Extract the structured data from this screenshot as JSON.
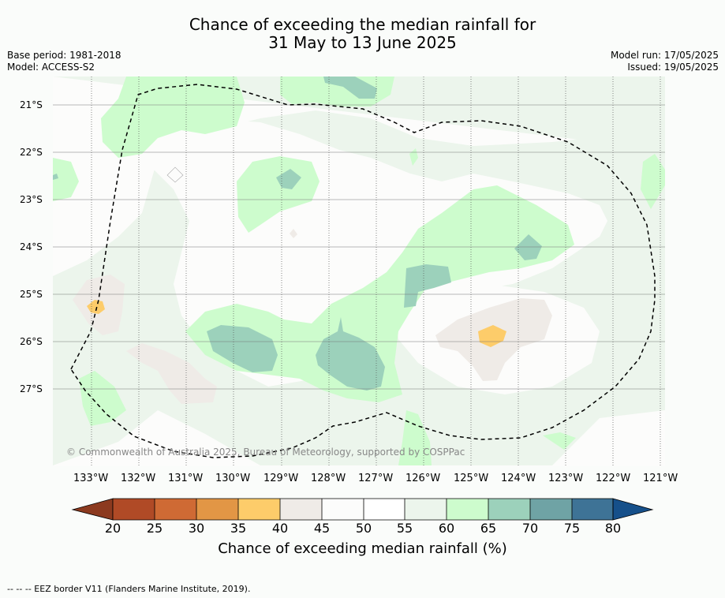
{
  "title": {
    "line1": "Chance of exceeding the median rainfall for",
    "line2": "31 May to 13 June 2025"
  },
  "meta": {
    "base_period": "Base period: 1981-2018",
    "model": "Model: ACCESS-S2",
    "model_run": "Model run: 17/05/2025",
    "issued": "Issued: 19/05/2025"
  },
  "map": {
    "lat_labels": [
      "21°S",
      "22°S",
      "23°S",
      "24°S",
      "25°S",
      "26°S",
      "27°S"
    ],
    "lon_labels": [
      "133°W",
      "132°W",
      "131°W",
      "130°W",
      "129°W",
      "128°W",
      "127°W",
      "126°W",
      "125°W",
      "124°W",
      "123°W",
      "122°W",
      "121°W"
    ],
    "copyright": "© Commonwealth of Australia 2025, Bureau of Meteorology, supported by COSPPac",
    "colors": {
      "c20": "#8c3a1f",
      "c25": "#b04a26",
      "c30": "#cf6a34",
      "c35": "#e29645",
      "c40": "#fdcc6a",
      "c45": "#efebe7",
      "c50": "#fcfcfb",
      "c55": "#ffffff",
      "c60": "#ecf5ec",
      "c65": "#cdfccd",
      "c70": "#9cd1bb",
      "c75": "#6fa3a5",
      "c80": "#3e7396",
      "c80plus": "#16508a"
    }
  },
  "colorbar": {
    "ticks": [
      "20",
      "25",
      "30",
      "35",
      "40",
      "45",
      "50",
      "55",
      "60",
      "65",
      "70",
      "75",
      "80"
    ],
    "title": "Chance of exceeding median rainfall (%)"
  },
  "footer": "--  --  -- EEZ border V11 (Flanders Marine Institute, 2019)."
}
